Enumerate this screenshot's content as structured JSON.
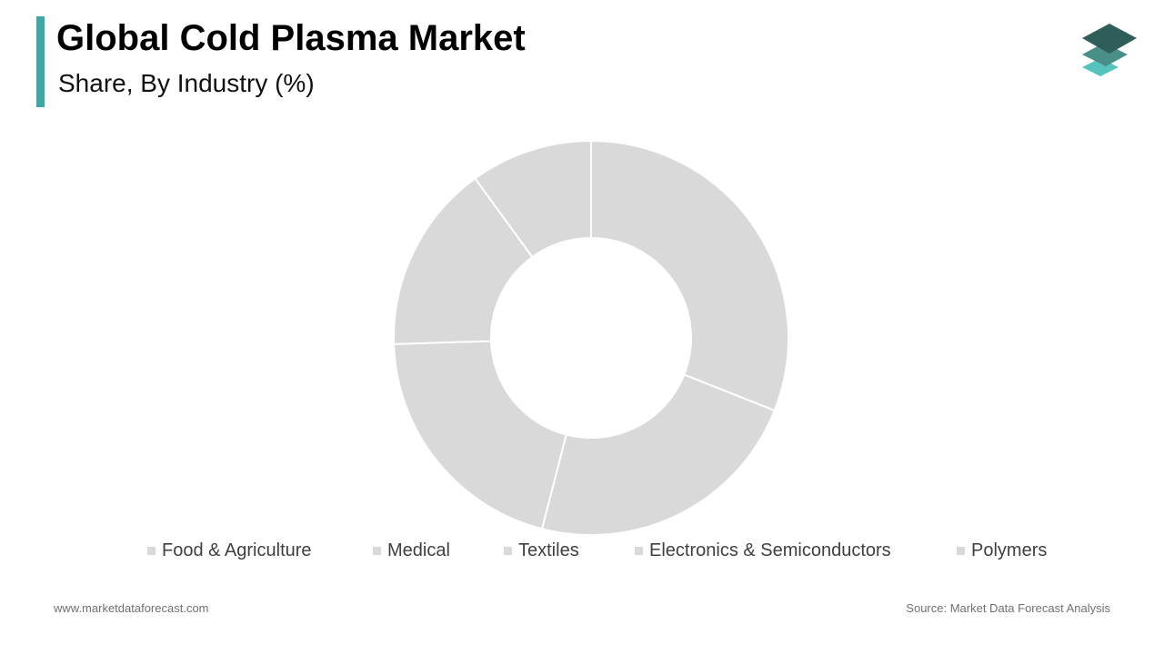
{
  "header": {
    "title": "Global Cold Plasma Market",
    "subtitle": "Share, By Industry (%)",
    "accent_color": "#3fa7a3"
  },
  "logo": {
    "icon": "stacked-layers-icon",
    "colors": [
      "#2f5e58",
      "#4a8f87",
      "#56c2bc"
    ]
  },
  "chart_data": {
    "type": "pie",
    "donut": true,
    "title": "Share, By Industry (%)",
    "categories": [
      "Food & Agriculture",
      "Medical",
      "Textiles",
      "Electronics & Semiconductors",
      "Polymers"
    ],
    "values": [
      31.0,
      23.0,
      20.5,
      15.5,
      10.0
    ],
    "colors": [
      "#d9d9d9",
      "#d9d9d9",
      "#d9d9d9",
      "#d9d9d9",
      "#d9d9d9"
    ],
    "legend_position": "bottom"
  },
  "footer": {
    "website": "www.marketdataforecast.com",
    "source": "Source: Market Data Forecast Analysis"
  }
}
